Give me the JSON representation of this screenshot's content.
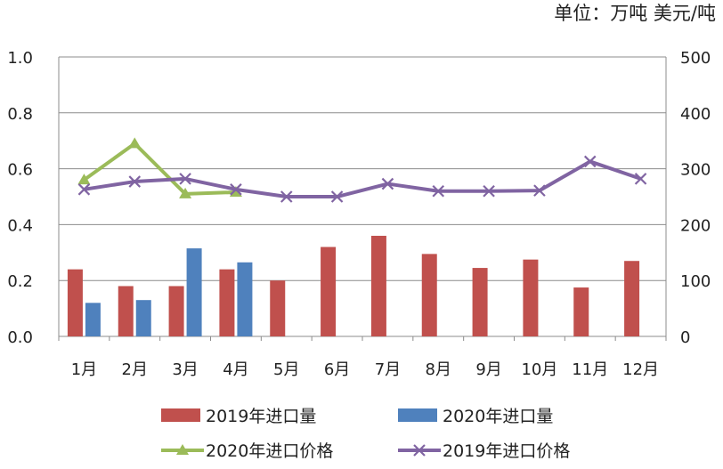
{
  "chart_data": {
    "type": "bar",
    "unit_label": "单位：万吨 美元/吨",
    "categories": [
      "1月",
      "2月",
      "3月",
      "4月",
      "5月",
      "6月",
      "7月",
      "8月",
      "9月",
      "10月",
      "11月",
      "12月"
    ],
    "left_axis": {
      "min": 0,
      "max": 1.0,
      "ticks": [
        "0.0",
        "0.2",
        "0.4",
        "0.6",
        "0.8",
        "1.0"
      ]
    },
    "right_axis": {
      "min": 0,
      "max": 500,
      "ticks": [
        "0",
        "100",
        "200",
        "300",
        "400",
        "500"
      ]
    },
    "grid": true,
    "legend_position": "bottom",
    "series": [
      {
        "name": "2019年进口量",
        "kind": "bar",
        "axis": "left",
        "color": "#c0504d",
        "values": [
          0.24,
          0.18,
          0.18,
          0.24,
          0.2,
          0.32,
          0.36,
          0.295,
          0.245,
          0.275,
          0.175,
          0.27
        ]
      },
      {
        "name": "2020年进口量",
        "kind": "bar",
        "axis": "left",
        "color": "#4f81bd",
        "values": [
          0.12,
          0.13,
          0.315,
          0.265,
          null,
          null,
          null,
          null,
          null,
          null,
          null,
          null
        ]
      },
      {
        "name": "2020年进口价格",
        "kind": "line",
        "marker": "triangle",
        "axis": "right",
        "color": "#9bbb59",
        "values": [
          280,
          345,
          255,
          258,
          null,
          null,
          null,
          null,
          null,
          null,
          null,
          null
        ]
      },
      {
        "name": "2019年进口价格",
        "kind": "line",
        "marker": "x",
        "axis": "right",
        "color": "#8064a2",
        "values": [
          263,
          277,
          282,
          263,
          250,
          250,
          273,
          260,
          260,
          261,
          313,
          282
        ]
      }
    ]
  }
}
